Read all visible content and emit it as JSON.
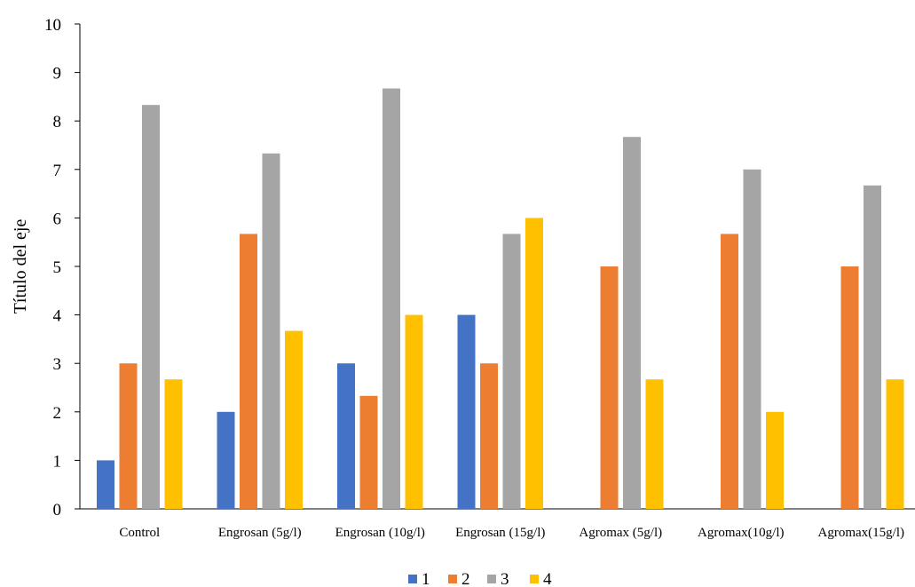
{
  "chart_data": {
    "type": "bar",
    "ylabel": "Título del eje",
    "ylim": [
      0,
      10
    ],
    "yticks": [
      0,
      1,
      2,
      3,
      4,
      5,
      6,
      7,
      8,
      9,
      10
    ],
    "categories": [
      "Control",
      "Engrosan (5g/l)",
      "Engrosan (10g/l)",
      "Engrosan (15g/l)",
      "Agromax  (5g/l)",
      "Agromax(10g/l)",
      "Agromax(15g/l)"
    ],
    "series": [
      {
        "name": "1",
        "color": "#4472C4",
        "values": [
          1,
          2,
          3,
          4,
          0,
          0,
          0
        ]
      },
      {
        "name": "2",
        "color": "#ED7D31",
        "values": [
          3,
          5.67,
          2.33,
          3,
          5,
          5.67,
          5
        ]
      },
      {
        "name": "3",
        "color": "#A5A5A5",
        "values": [
          8.33,
          7.33,
          8.67,
          5.67,
          7.67,
          7,
          6.67
        ]
      },
      {
        "name": "4",
        "color": "#FFC000",
        "values": [
          2.67,
          3.67,
          4,
          6,
          2.67,
          2,
          2.67
        ]
      }
    ],
    "grid": false,
    "legend": "bottom-center"
  }
}
